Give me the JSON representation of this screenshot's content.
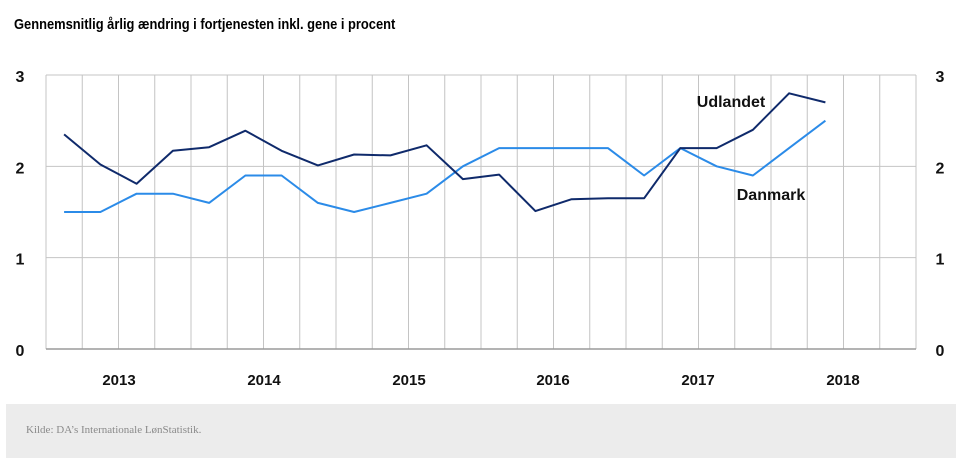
{
  "chart_data": {
    "type": "line",
    "title": "Gennemsnitlig årlig ændring i fortjenesten inkl. gene i procent",
    "categories": [
      "2013",
      "2014",
      "2015",
      "2016",
      "2017",
      "2018"
    ],
    "ylim": [
      0,
      3
    ],
    "yticks": [
      "0",
      "1",
      "2",
      "3"
    ],
    "grid": true,
    "x": [
      "2012K3",
      "2012K4",
      "2013K1",
      "2013K2",
      "2013K3",
      "2013K4",
      "2014K1",
      "2014K2",
      "2014K3",
      "2014K4",
      "2015K1",
      "2015K2",
      "2015K3",
      "2015K4",
      "2016K1",
      "2016K2",
      "2016K3",
      "2016K4",
      "2017K1",
      "2017K2",
      "2017K3",
      "2017K4"
    ],
    "series": [
      {
        "name": "Udlandet",
        "color": "#0f2a6b",
        "values": [
          2.35,
          2.02,
          1.81,
          2.17,
          2.21,
          2.39,
          2.17,
          2.01,
          2.13,
          2.12,
          2.23,
          1.86,
          1.91,
          1.51,
          1.64,
          1.65,
          1.65,
          2.2,
          2.2,
          2.4,
          2.8,
          2.7
        ]
      },
      {
        "name": "Danmark",
        "color": "#2b8be8",
        "values": [
          1.5,
          1.5,
          1.7,
          1.7,
          1.6,
          1.9,
          1.9,
          1.6,
          1.5,
          1.6,
          1.7,
          2.0,
          2.2,
          2.2,
          2.2,
          2.2,
          1.9,
          2.2,
          2.0,
          1.9,
          2.2,
          2.5
        ]
      }
    ],
    "source": "Kilde: DA’s Internationale LønStatistik."
  }
}
